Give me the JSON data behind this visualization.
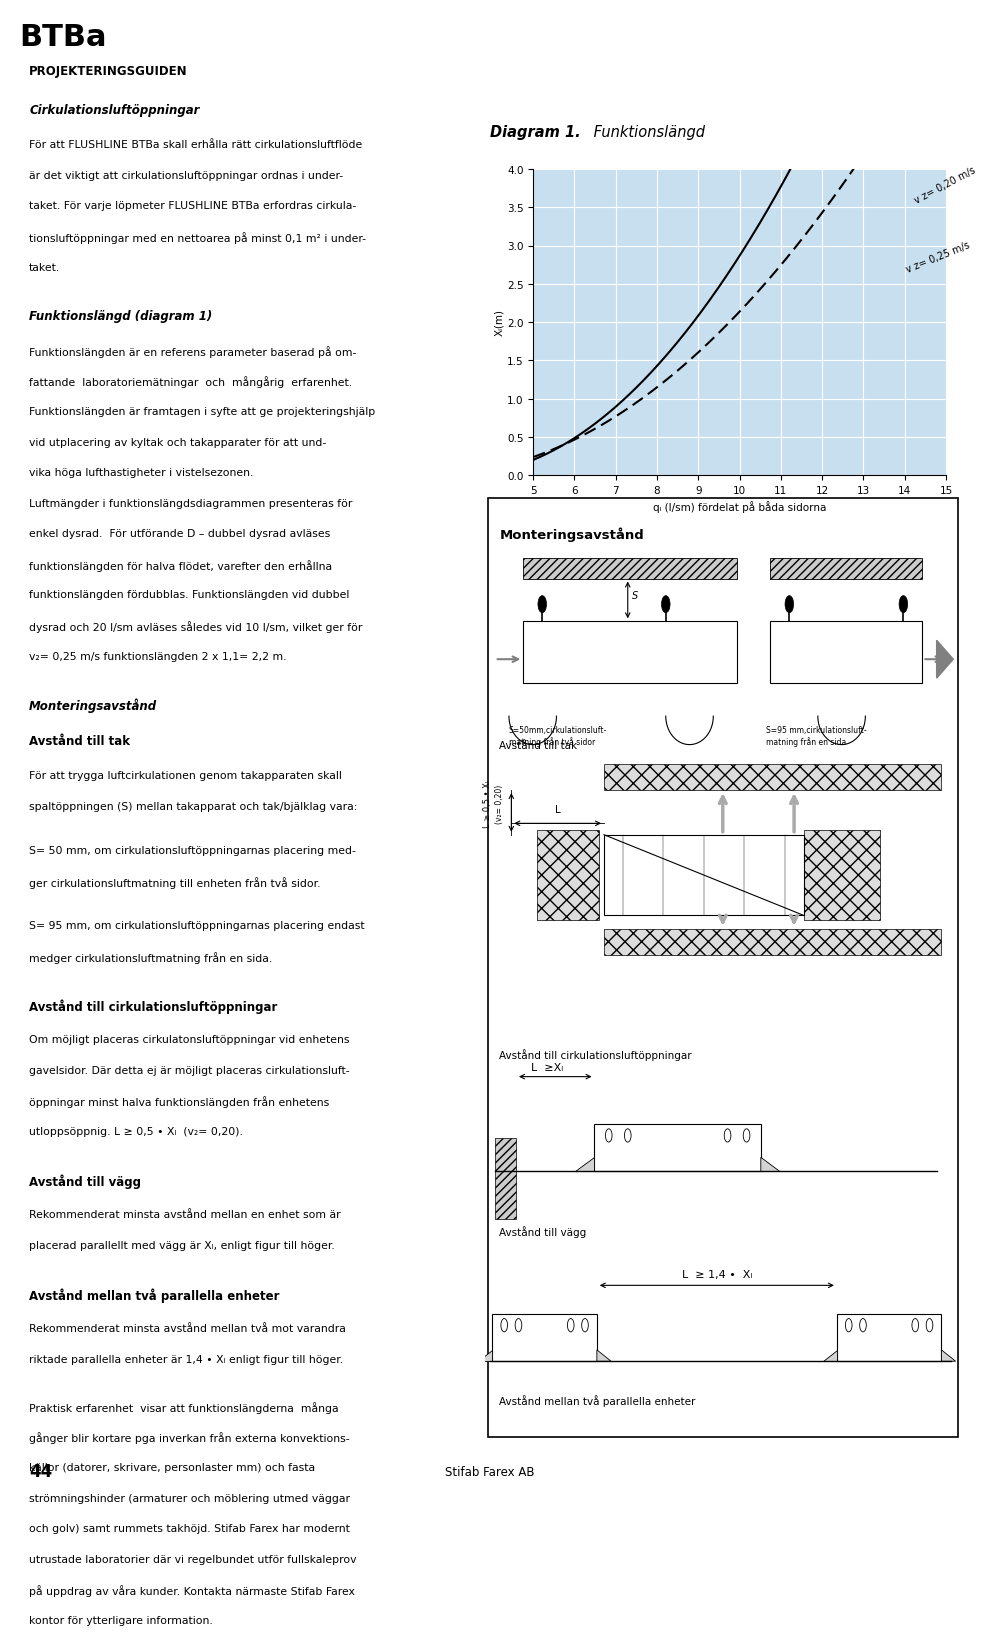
{
  "title_header": "BTBa",
  "section1_title": "PROJEKTERINGSGUIDEN",
  "section1_subtitle": "Cirkulationsluftöppningar",
  "section2_title": "Funktionslängd (diagram 1)",
  "section3_title": "Monteringsavstånd",
  "section3_sub1": "Avstånd till tak",
  "section3_sub2": "Avstånd till cirkulationsluftöppningar",
  "section3_sub3": "Avstånd till vägg",
  "section3_sub4": "Avstånd mellan två parallella enheter",
  "diagram_title": "Diagram 1",
  "diagram_subtitle": "Funktionslängd",
  "diagram_xlabel": "qₗ (l/sm) fördelat på båda sidorna",
  "diagram_ylabel": "Xₗ(m)",
  "diagram_xlim": [
    5,
    15
  ],
  "diagram_ylim": [
    0,
    4.0
  ],
  "diagram_xticks": [
    5,
    6,
    7,
    8,
    9,
    10,
    11,
    12,
    13,
    14,
    15
  ],
  "diagram_yticks": [
    0,
    0.5,
    1.0,
    1.5,
    2.0,
    2.5,
    3.0,
    3.5,
    4.0
  ],
  "line1_label": "v z= 0,20 m/s",
  "line2_label": "v z= 0,25 m/s",
  "bg_color": "#c8dff0",
  "footer_text": "Stifab Farex AB",
  "page_number": "44",
  "monteringsavstand_title": "Monteringsavstånd",
  "s50_label": "S=50mm,cirkulationsluft-\nmatning från två sidor",
  "s95_label": "S=95 mm,cirkulationsluft-\nmatning från en sida",
  "avstand_tak_label": "Avstånd till tak",
  "avstand_cirk_label": "Avstånd till cirkulationsluftöppningar",
  "avstand_vagg_label": "Avstånd till vägg",
  "avstand_parallell_label": "Avstånd mellan två parallella enheter"
}
